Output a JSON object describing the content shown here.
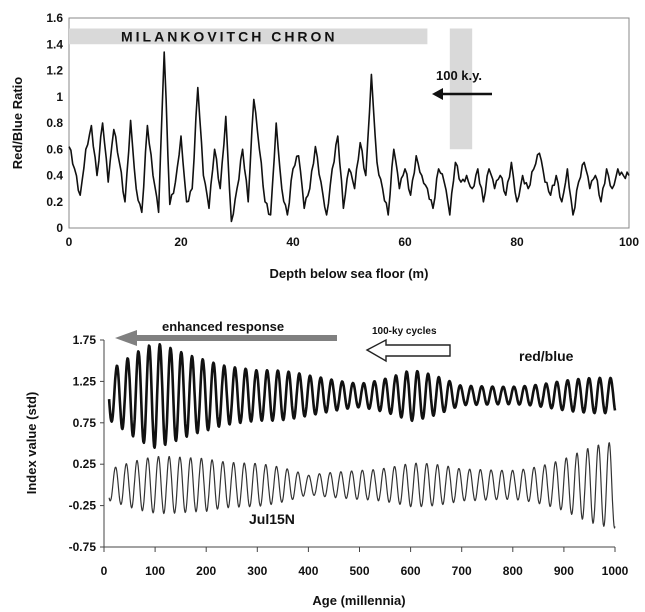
{
  "chart_data": [
    {
      "type": "line",
      "title": "",
      "xlabel": "Depth below sea floor (m)",
      "ylabel": "Red/Blue Ratio",
      "xlim": [
        0,
        100
      ],
      "ylim": [
        0,
        1.6
      ],
      "x_ticks": [
        "0",
        "20",
        "40",
        "60",
        "80",
        "100"
      ],
      "y_ticks": [
        "0",
        "0.2",
        "0.4",
        "0.6",
        "0.8",
        "1",
        "1.2",
        "1.4",
        "1.6"
      ],
      "grid": false,
      "annotations": {
        "band_label": "MILANKOVITCH CHRON",
        "band_x_range": [
          0,
          64
        ],
        "band_y_range": [
          1.4,
          1.52
        ],
        "cycle_label": "100 k.y.",
        "cycle_bar_x_range": [
          68,
          72
        ],
        "cycle_bar_y_range": [
          0.6,
          1.52
        ]
      },
      "series": [
        {
          "name": "",
          "x": [
            0,
            1,
            2,
            3,
            4,
            5,
            6,
            7,
            8,
            9,
            10,
            11,
            12,
            13,
            14,
            15,
            16,
            17,
            18,
            19,
            20,
            21,
            22,
            23,
            24,
            25,
            26,
            27,
            28,
            29,
            30,
            31,
            32,
            33,
            34,
            35,
            36,
            37,
            38,
            39,
            40,
            41,
            42,
            43,
            44,
            45,
            46,
            47,
            48,
            49,
            50,
            51,
            52,
            53,
            54,
            55,
            56,
            57,
            58,
            59,
            60,
            61,
            62,
            63,
            64,
            65,
            66,
            67,
            68,
            69,
            70,
            71,
            72,
            73,
            74,
            75,
            76,
            77,
            78,
            79,
            80,
            81,
            82,
            83,
            84,
            85,
            86,
            87,
            88,
            89,
            90,
            91,
            92,
            93,
            94,
            95,
            96,
            97,
            98,
            99,
            100
          ],
          "values": [
            0.62,
            0.45,
            0.25,
            0.6,
            0.78,
            0.4,
            0.8,
            0.35,
            0.75,
            0.5,
            0.2,
            0.82,
            0.3,
            0.12,
            0.78,
            0.4,
            0.12,
            1.34,
            0.18,
            0.35,
            0.7,
            0.2,
            0.3,
            1.07,
            0.4,
            0.15,
            0.6,
            0.3,
            0.85,
            0.05,
            0.3,
            0.6,
            0.2,
            0.98,
            0.6,
            0.2,
            0.1,
            0.8,
            0.3,
            0.1,
            0.45,
            0.55,
            0.15,
            0.3,
            0.62,
            0.35,
            0.1,
            0.45,
            0.7,
            0.15,
            0.45,
            0.3,
            0.65,
            0.4,
            1.17,
            0.5,
            0.3,
            0.1,
            0.6,
            0.3,
            0.45,
            0.25,
            0.55,
            0.4,
            0.3,
            0.15,
            0.45,
            0.35,
            0.1,
            0.5,
            0.35,
            0.4,
            0.3,
            0.45,
            0.2,
            0.45,
            0.3,
            0.4,
            0.25,
            0.5,
            0.2,
            0.4,
            0.3,
            0.45,
            0.57,
            0.35,
            0.25,
            0.4,
            0.2,
            0.45,
            0.1,
            0.35,
            0.5,
            0.3,
            0.4,
            0.2,
            0.45,
            0.3,
            0.45,
            0.4,
            0.4
          ]
        }
      ]
    },
    {
      "type": "line",
      "title": "",
      "xlabel": "Age (millennia)",
      "ylabel": "Index value (std)",
      "xlim": [
        0,
        1000
      ],
      "ylim": [
        -0.75,
        1.75
      ],
      "x_ticks": [
        "0",
        "100",
        "200",
        "300",
        "400",
        "500",
        "600",
        "700",
        "800",
        "900",
        "1000"
      ],
      "y_ticks": [
        "1.75",
        "1.25",
        "0.75",
        "0.25",
        "-0.25",
        "-0.75"
      ],
      "grid": false,
      "annotations": {
        "response_label": "enhanced response",
        "response_arrow_x_range": [
          0,
          460
        ],
        "cycles_label": "100-ky cycles",
        "cycles_arrow_x_range": [
          460,
          590
        ]
      },
      "series": [
        {
          "name": "red/blue",
          "label_position": "top-right",
          "x": [
            0,
            100,
            200,
            300,
            400,
            500,
            600,
            700,
            800,
            900,
            1000
          ],
          "center": 1.08,
          "amplitude_envelope": [
            0.3,
            0.65,
            0.6,
            0.35,
            0.25,
            0.2,
            0.35,
            0.12,
            0.15,
            0.2,
            0.22
          ],
          "period": 21
        },
        {
          "name": "Jul15N",
          "label_position": "bottom-left",
          "x": [
            0,
            100,
            200,
            300,
            400,
            500,
            600,
            700,
            800,
            900,
            1000
          ],
          "center": 0.0,
          "amplitude_envelope": [
            0.2,
            0.35,
            0.45,
            0.3,
            0.12,
            0.25,
            0.3,
            0.2,
            0.25,
            0.35,
            0.55
          ],
          "period": 21
        }
      ]
    }
  ]
}
